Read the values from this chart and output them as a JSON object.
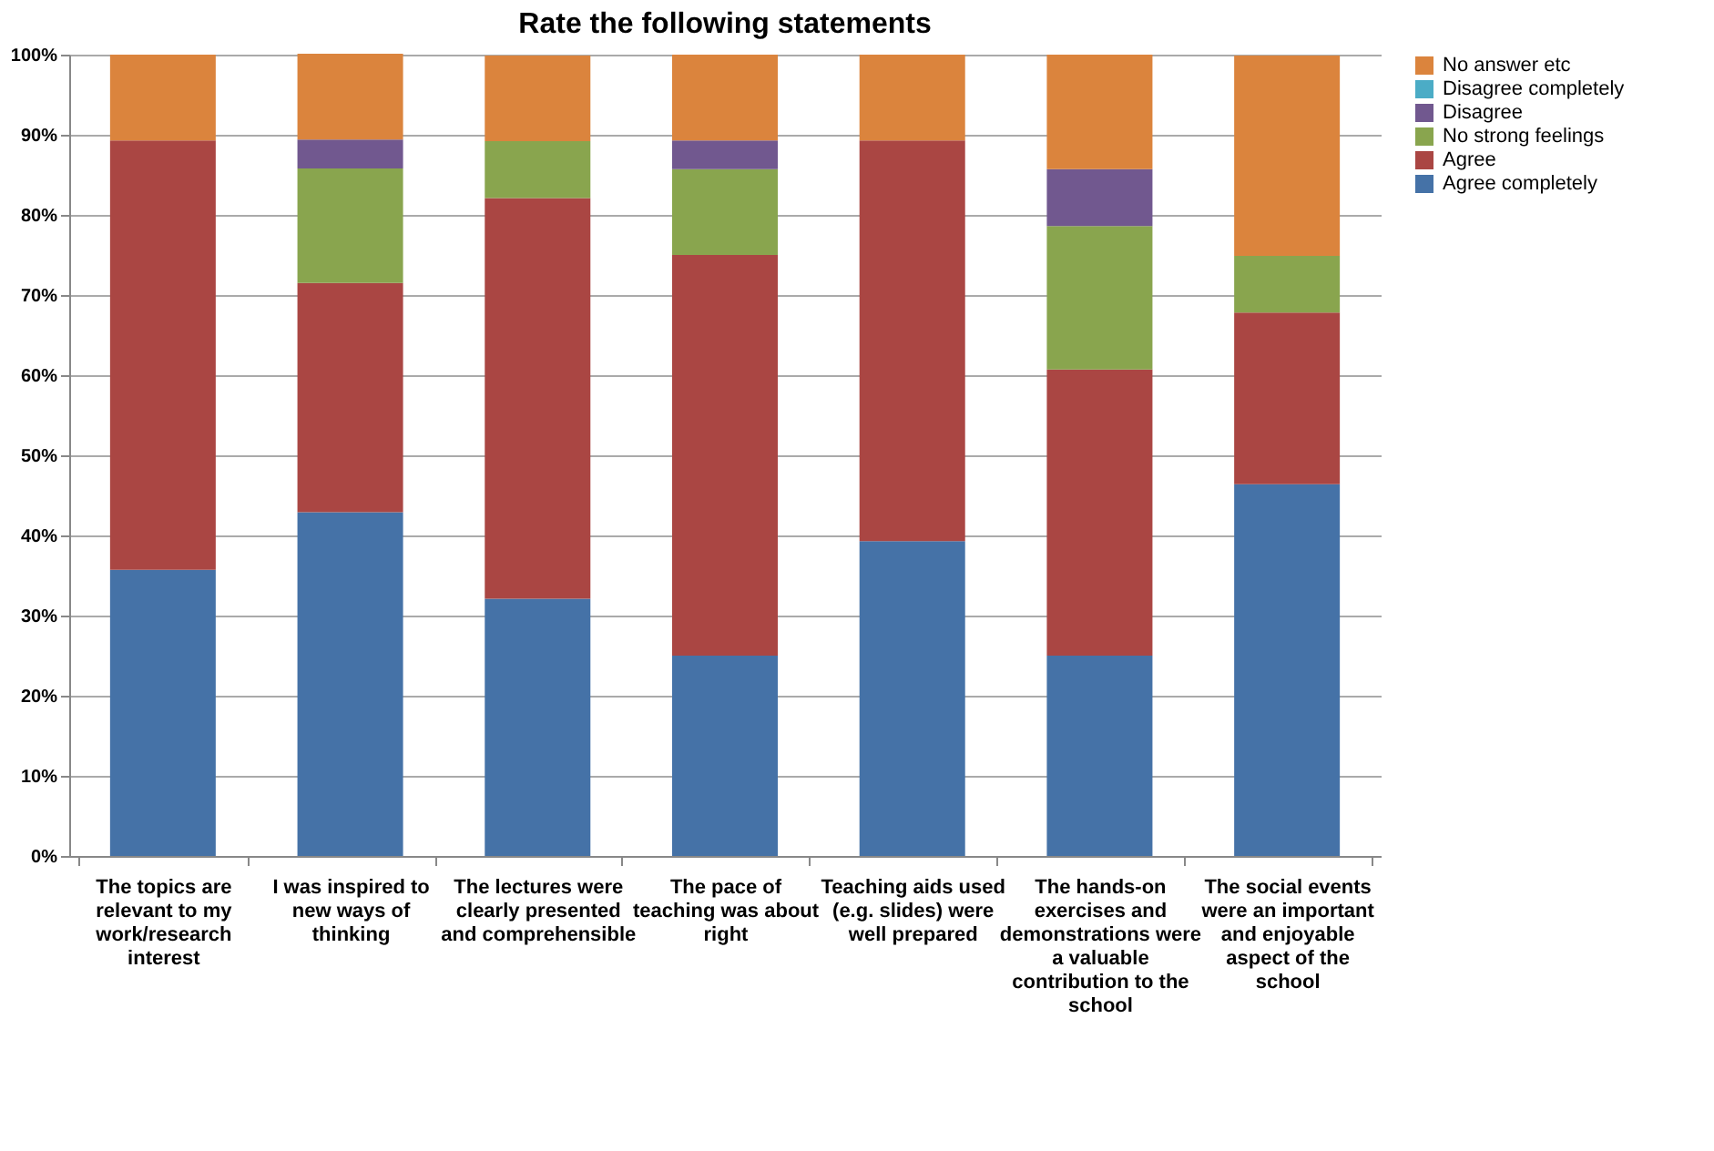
{
  "chart_data": {
    "type": "bar",
    "title": "Rate the following statements",
    "stacked": true,
    "categories": [
      "The topics are relevant to my work/research interest",
      "I was inspired to new ways of thinking",
      "The lectures were clearly presented and comprehensible",
      "The pace of teaching was about right",
      "Teaching aids used (e.g. slides) were well prepared",
      "The hands-on exercises and demonstrations were a valuable contribution to the school",
      "The social events were an important and enjoyable aspect of the school"
    ],
    "series": [
      {
        "name": "Agree completely",
        "color": "#4572a7",
        "values": [
          35.7,
          42.9,
          32.1,
          25.0,
          39.3,
          25.0,
          46.4
        ]
      },
      {
        "name": "Agree",
        "color": "#aa4643",
        "values": [
          53.6,
          28.6,
          50.0,
          50.0,
          50.0,
          35.7,
          21.4
        ]
      },
      {
        "name": "No strong feelings",
        "color": "#89a54e",
        "values": [
          0,
          14.3,
          7.1,
          10.7,
          0,
          17.9,
          7.1
        ]
      },
      {
        "name": "Disagree",
        "color": "#71588f",
        "values": [
          0,
          3.6,
          0,
          3.6,
          0,
          7.1,
          0
        ]
      },
      {
        "name": "Disagree completely",
        "color": "#4bacc6",
        "values": [
          0,
          0,
          0,
          0,
          0,
          0,
          0
        ]
      },
      {
        "name": "No answer etc",
        "color": "#db843d",
        "values": [
          10.7,
          10.7,
          10.7,
          10.7,
          10.7,
          14.3,
          25.0
        ]
      }
    ],
    "ylim": [
      0,
      100
    ],
    "yticks": [
      {
        "value": 0,
        "label": "0%"
      },
      {
        "value": 10,
        "label": "10%"
      },
      {
        "value": 20,
        "label": "20%"
      },
      {
        "value": 30,
        "label": "30%"
      },
      {
        "value": 40,
        "label": "40%"
      },
      {
        "value": 50,
        "label": "50%"
      },
      {
        "value": 60,
        "label": "60%"
      },
      {
        "value": 70,
        "label": "70%"
      },
      {
        "value": 80,
        "label": "80%"
      },
      {
        "value": 90,
        "label": "90%"
      },
      {
        "value": 100,
        "label": "100%"
      }
    ],
    "grid": "y",
    "legend": "right"
  }
}
